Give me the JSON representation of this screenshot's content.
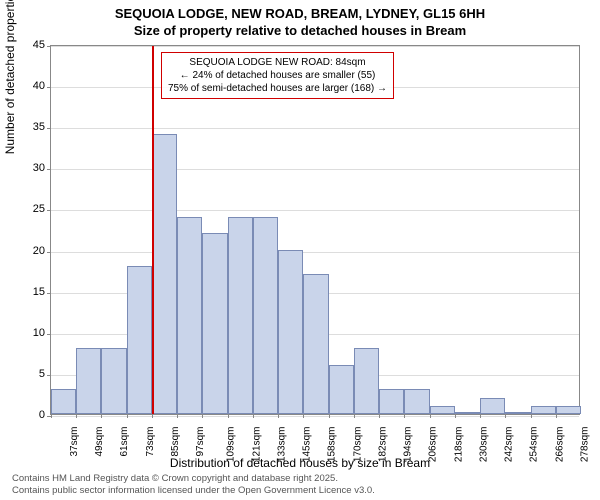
{
  "title_line1": "SEQUOIA LODGE, NEW ROAD, BREAM, LYDNEY, GL15 6HH",
  "title_line2": "Size of property relative to detached houses in Bream",
  "y_axis_label": "Number of detached properties",
  "x_axis_label": "Distribution of detached houses by size in Bream",
  "chart": {
    "type": "histogram",
    "ylim": [
      0,
      45
    ],
    "ytick_step": 5,
    "yticks": [
      0,
      5,
      10,
      15,
      20,
      25,
      30,
      35,
      40,
      45
    ],
    "xtick_labels": [
      "37sqm",
      "49sqm",
      "61sqm",
      "73sqm",
      "85sqm",
      "97sqm",
      "109sqm",
      "121sqm",
      "133sqm",
      "145sqm",
      "158sqm",
      "170sqm",
      "182sqm",
      "194sqm",
      "206sqm",
      "218sqm",
      "230sqm",
      "242sqm",
      "254sqm",
      "266sqm",
      "278sqm"
    ],
    "values": [
      3,
      8,
      8,
      18,
      34,
      24,
      22,
      24,
      24,
      20,
      17,
      6,
      8,
      3,
      3,
      1,
      0,
      2,
      0,
      1,
      1
    ],
    "bar_fill": "#c9d4ea",
    "bar_border": "#7a8bb5",
    "background_color": "#ffffff",
    "grid_color": "#dddddd",
    "bar_width": 1.0,
    "marker_index": 4,
    "marker_color": "#d00000"
  },
  "info_box": {
    "line1": "SEQUOIA LODGE NEW ROAD: 84sqm",
    "line2": "← 24% of detached houses are smaller (55)",
    "line3": "75% of semi-detached houses are larger (168) →"
  },
  "footer": {
    "line1": "Contains HM Land Registry data © Crown copyright and database right 2025.",
    "line2": "Contains public sector information licensed under the Open Government Licence v3.0."
  }
}
